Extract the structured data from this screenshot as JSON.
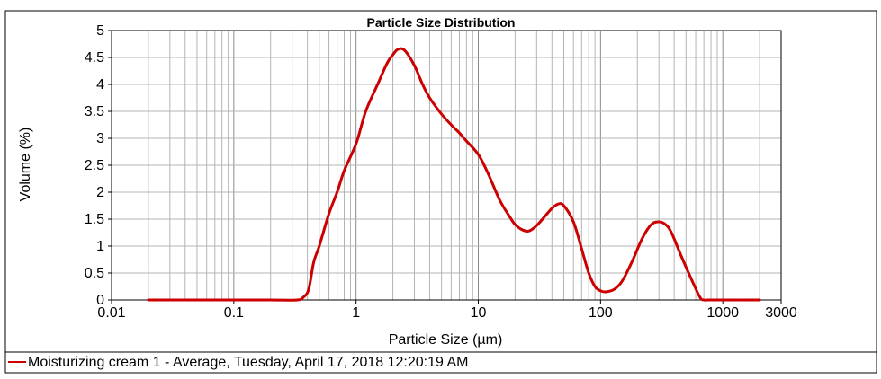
{
  "chart_data": {
    "type": "line",
    "title": "Particle Size Distribution",
    "xlabel": "Particle Size (µm)",
    "ylabel": "Volume (%)",
    "xscale": "log",
    "xlim": [
      0.01,
      3000
    ],
    "ylim": [
      0,
      5
    ],
    "grid": true,
    "legend_position": "bottom",
    "x_ticks": [
      {
        "value": 0.01,
        "label": "0.01"
      },
      {
        "value": 0.1,
        "label": "0.1"
      },
      {
        "value": 1,
        "label": "1"
      },
      {
        "value": 10,
        "label": "10"
      },
      {
        "value": 100,
        "label": "100"
      },
      {
        "value": 1000,
        "label": "1000"
      },
      {
        "value": 3000,
        "label": "3000"
      }
    ],
    "y_ticks": [
      {
        "value": 0,
        "label": "0"
      },
      {
        "value": 0.5,
        "label": "0.5"
      },
      {
        "value": 1,
        "label": "1"
      },
      {
        "value": 1.5,
        "label": "1.5"
      },
      {
        "value": 2,
        "label": "2"
      },
      {
        "value": 2.5,
        "label": "2.5"
      },
      {
        "value": 3,
        "label": "3"
      },
      {
        "value": 3.5,
        "label": "3.5"
      },
      {
        "value": 4,
        "label": "4"
      },
      {
        "value": 4.5,
        "label": "4.5"
      },
      {
        "value": 5,
        "label": "5"
      }
    ],
    "series": [
      {
        "name": "Moisturizing cream 1 - Average, Tuesday, April 17, 2018 12:20:19 AM",
        "color": "#cc0000",
        "x": [
          0.02,
          0.05,
          0.1,
          0.2,
          0.33,
          0.37,
          0.41,
          0.45,
          0.5,
          0.6,
          0.7,
          0.8,
          1.0,
          1.2,
          1.5,
          1.8,
          2.0,
          2.2,
          2.5,
          3.0,
          3.5,
          4.0,
          5.0,
          6.0,
          7.0,
          8.0,
          10.0,
          12.0,
          15.0,
          18.0,
          20.0,
          23.0,
          26.0,
          30.0,
          35.0,
          40.0,
          45.0,
          50.0,
          60.0,
          70.0,
          80.0,
          90.0,
          100.0,
          110.0,
          130.0,
          150.0,
          180.0,
          220.0,
          260.0,
          300.0,
          340.0,
          380.0,
          450.0,
          550.0,
          650.0,
          700.0,
          750.0,
          1000.0,
          2000.0
        ],
        "y": [
          0,
          0,
          0,
          0,
          0,
          0.05,
          0.2,
          0.7,
          1.0,
          1.6,
          2.0,
          2.4,
          2.9,
          3.5,
          4.0,
          4.4,
          4.55,
          4.65,
          4.63,
          4.35,
          4.0,
          3.75,
          3.45,
          3.25,
          3.1,
          2.95,
          2.7,
          2.35,
          1.85,
          1.55,
          1.4,
          1.3,
          1.28,
          1.38,
          1.55,
          1.7,
          1.78,
          1.75,
          1.45,
          0.95,
          0.5,
          0.25,
          0.17,
          0.15,
          0.2,
          0.35,
          0.7,
          1.15,
          1.4,
          1.45,
          1.4,
          1.25,
          0.85,
          0.4,
          0.05,
          0,
          0,
          0,
          0
        ]
      }
    ]
  }
}
